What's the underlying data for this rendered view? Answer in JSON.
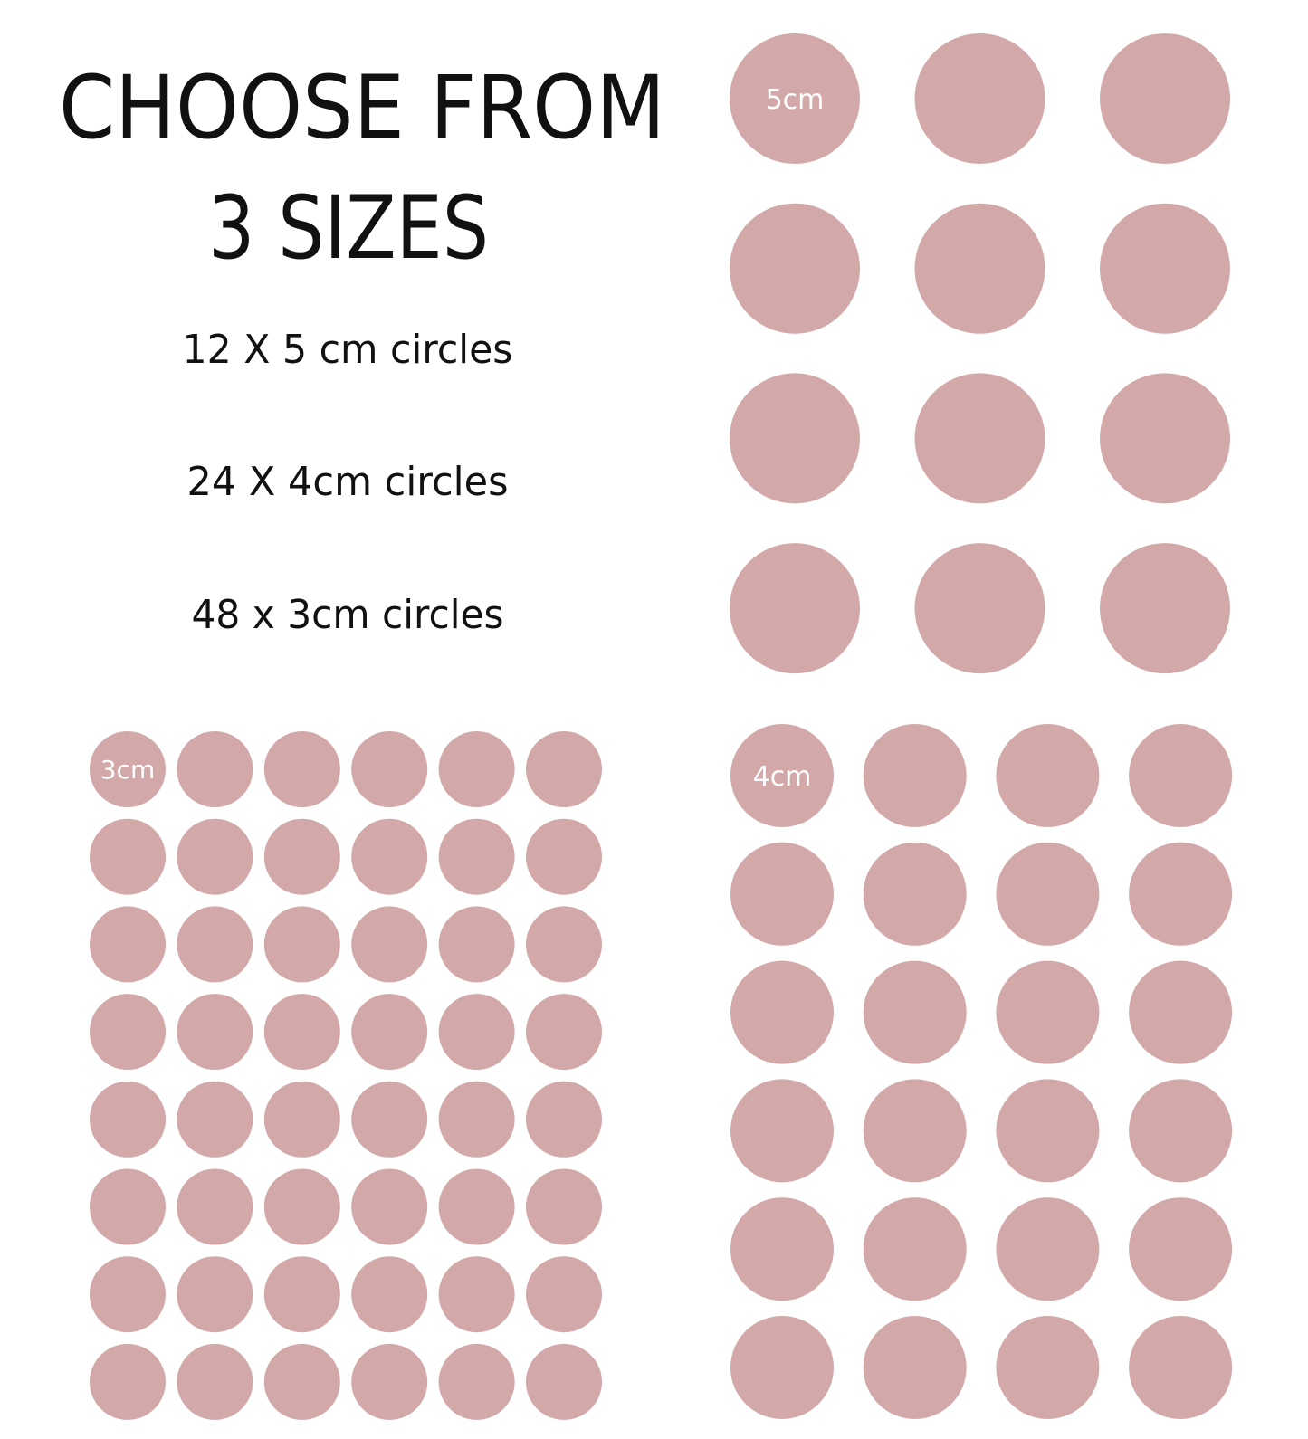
{
  "title_line1": "CHOOSE FROM",
  "title_line2": "3 SIZES",
  "options": [
    "12 X 5 cm circles",
    "24 X 4cm circles",
    "48 x 3cm circles"
  ],
  "circle_color": "#d3a8a9",
  "groups": [
    {
      "label": "5cm",
      "rows": 4,
      "cols": 3
    },
    {
      "label": "4cm",
      "rows": 6,
      "cols": 4
    },
    {
      "label": "3cm",
      "rows": 8,
      "cols": 6
    }
  ]
}
